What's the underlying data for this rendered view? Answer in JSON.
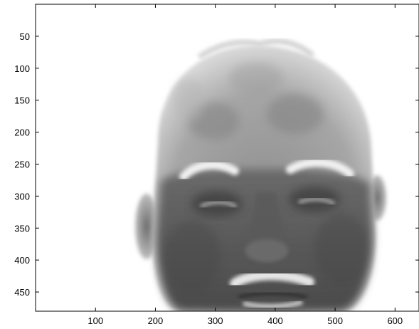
{
  "chart_data": {
    "type": "heatmap",
    "title": "",
    "xlabel": "",
    "ylabel": "",
    "colormap": "gray",
    "xlim": [
      0,
      640
    ],
    "ylim": [
      480,
      0
    ],
    "y_axis_reversed": true,
    "x_ticks": [
      100,
      200,
      300,
      400,
      500,
      600
    ],
    "y_ticks": [
      50,
      100,
      150,
      200,
      250,
      300,
      350,
      400,
      450
    ],
    "image_content": "grayscale image of a man's face on a white background"
  },
  "colors": {
    "background": "#ffffff",
    "axis": "#000000",
    "skin_dark": "#505050",
    "skin_mid": "#8a8a8a",
    "skin_light": "#c8c8c8",
    "highlight": "#f2f2f2"
  }
}
